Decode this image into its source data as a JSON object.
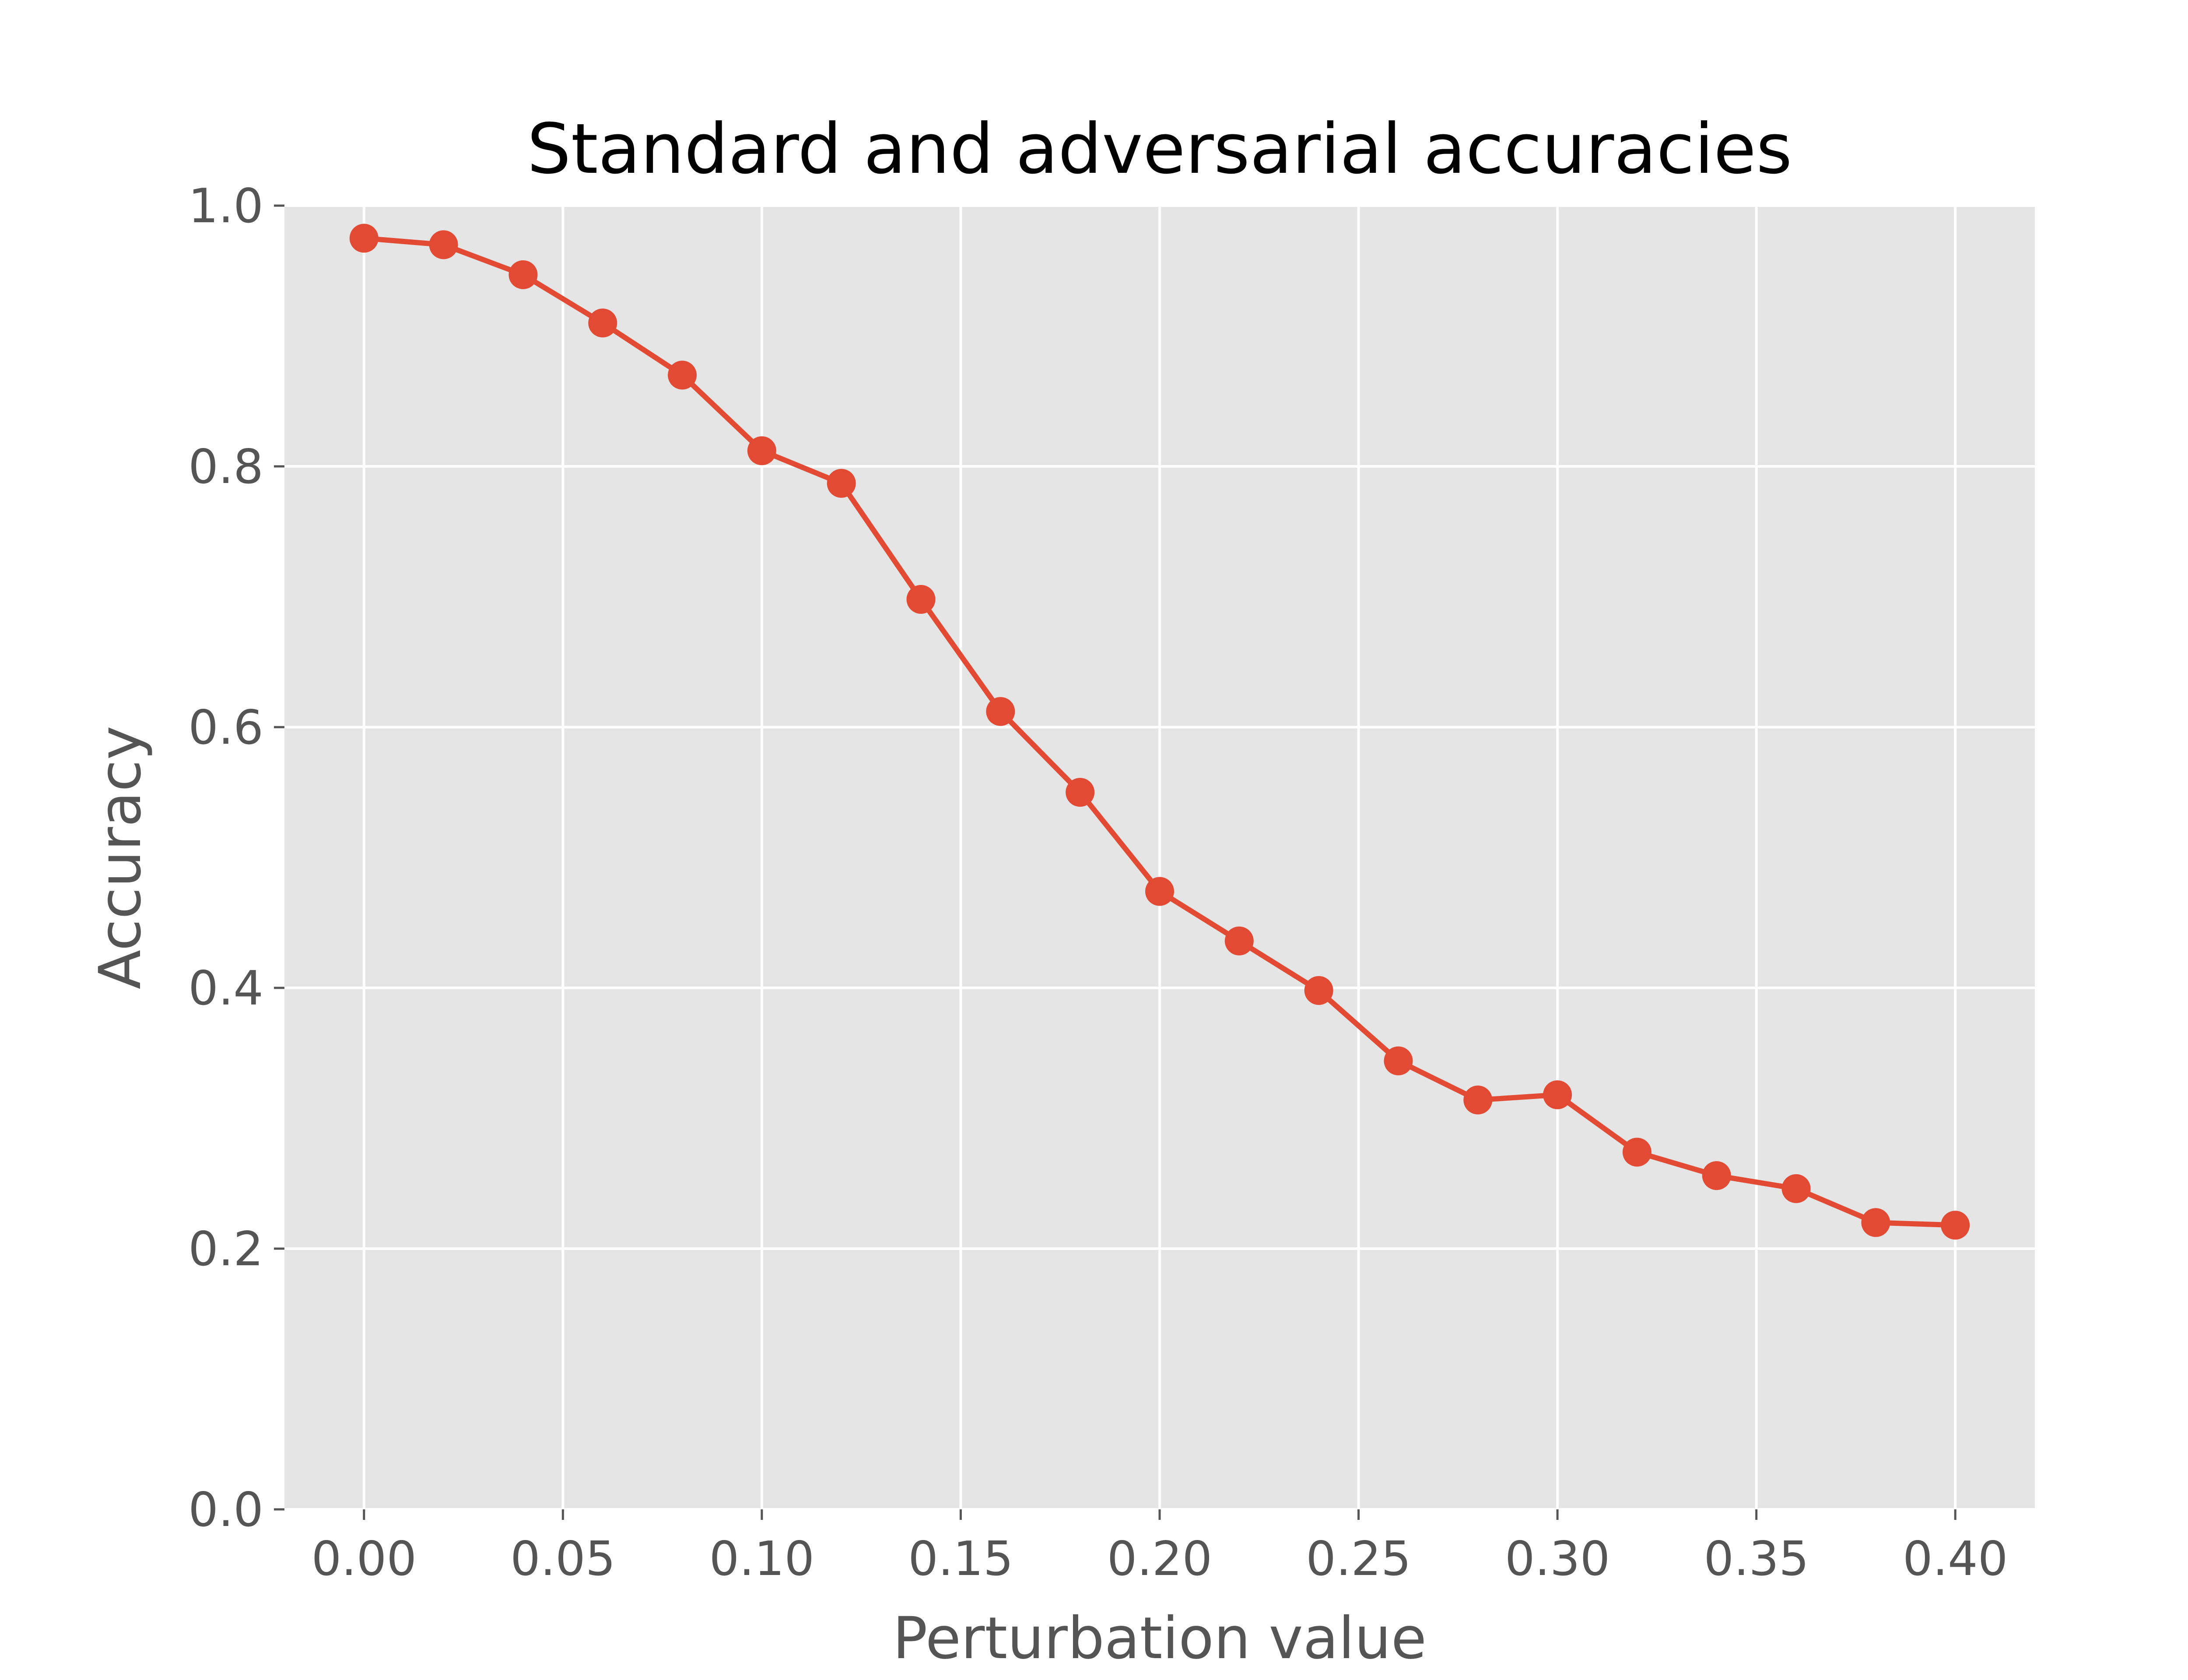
{
  "chart_data": {
    "type": "line",
    "title": "Standard and adversarial accuracies",
    "xlabel": "Perturbation value",
    "ylabel": "Accuracy",
    "xlim": [
      -0.02,
      0.42
    ],
    "ylim": [
      0.0,
      1.0
    ],
    "xticks": [
      "0.00",
      "0.05",
      "0.10",
      "0.15",
      "0.20",
      "0.25",
      "0.30",
      "0.35",
      "0.40"
    ],
    "yticks": [
      "0.0",
      "0.2",
      "0.4",
      "0.6",
      "0.8",
      "1.0"
    ],
    "grid": true,
    "style": {
      "background": "#E5E5E5",
      "grid_color": "#FFFFFF",
      "line_color": "#E24A33",
      "tick_color": "#555555"
    },
    "series": [
      {
        "x": [
          0.0,
          0.02,
          0.04,
          0.06,
          0.08,
          0.1,
          0.12,
          0.14,
          0.16,
          0.18,
          0.2,
          0.22,
          0.24,
          0.26,
          0.28,
          0.3,
          0.32,
          0.34,
          0.36,
          0.38,
          0.4
        ],
        "y": [
          0.975,
          0.97,
          0.947,
          0.91,
          0.87,
          0.812,
          0.787,
          0.698,
          0.612,
          0.55,
          0.474,
          0.436,
          0.398,
          0.344,
          0.314,
          0.318,
          0.274,
          0.256,
          0.246,
          0.22,
          0.218
        ]
      }
    ]
  }
}
